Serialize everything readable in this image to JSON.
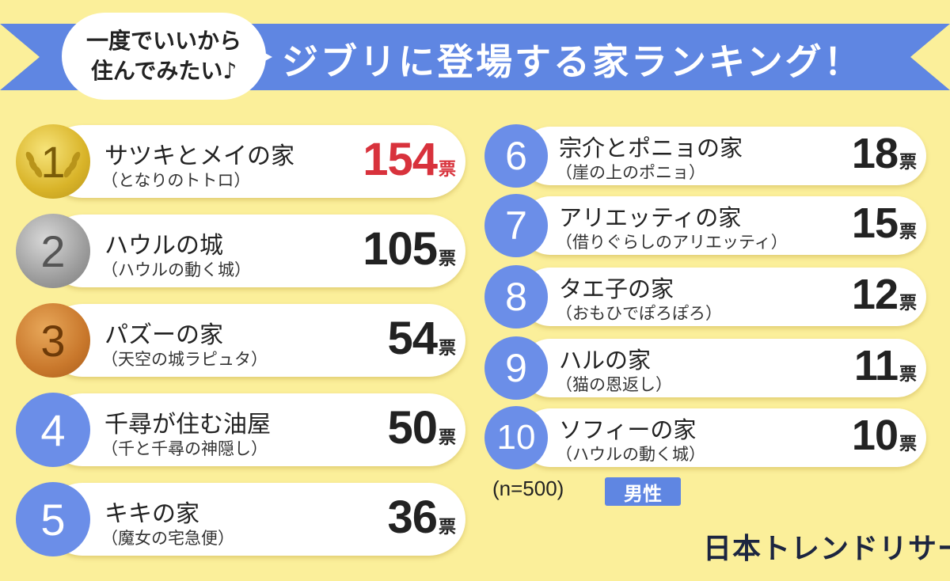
{
  "header": {
    "bubble_line1": "一度でいいから",
    "bubble_line2": "住んでみたい♪",
    "title": "ジブリに登場する家ランキング！",
    "ribbon_color": "#5f86e2"
  },
  "footer": {
    "sample": "(n=500)",
    "gender": "男性",
    "brand": "日本トレンドリサーチ"
  },
  "chart_data": {
    "type": "table",
    "title": "ジブリに登場する家ランキング！",
    "unit": "票",
    "rows": [
      {
        "rank": "1",
        "house": "サツキとメイの家",
        "film": "（となりのトトロ）",
        "votes": 154,
        "medal": "gold"
      },
      {
        "rank": "2",
        "house": "ハウルの城",
        "film": "（ハウルの動く城）",
        "votes": 105,
        "medal": "silver"
      },
      {
        "rank": "3",
        "house": "パズーの家",
        "film": "（天空の城ラピュタ）",
        "votes": 54,
        "medal": "bronze"
      },
      {
        "rank": "4",
        "house": "千尋が住む油屋",
        "film": "（千と千尋の神隠し）",
        "votes": 50,
        "medal": "blue"
      },
      {
        "rank": "5",
        "house": "キキの家",
        "film": "（魔女の宅急便）",
        "votes": 36,
        "medal": "blue"
      },
      {
        "rank": "6",
        "house": "宗介とポニョの家",
        "film": "（崖の上のポニョ）",
        "votes": 18,
        "medal": "blue"
      },
      {
        "rank": "7",
        "house": "アリエッティの家",
        "film": "（借りぐらしのアリエッティ）",
        "votes": 15,
        "medal": "blue"
      },
      {
        "rank": "8",
        "house": "タエ子の家",
        "film": "（おもひでぽろぽろ）",
        "votes": 12,
        "medal": "blue"
      },
      {
        "rank": "9",
        "house": "ハルの家",
        "film": "（猫の恩返し）",
        "votes": 11,
        "medal": "blue"
      },
      {
        "rank": "10",
        "house": "ソフィーの家",
        "film": "（ハウルの動く城）",
        "votes": 10,
        "medal": "blue"
      }
    ],
    "colors": {
      "top_votes": "#d8323c",
      "votes": "#222222",
      "rank_blue": "#6b8ee8"
    }
  }
}
